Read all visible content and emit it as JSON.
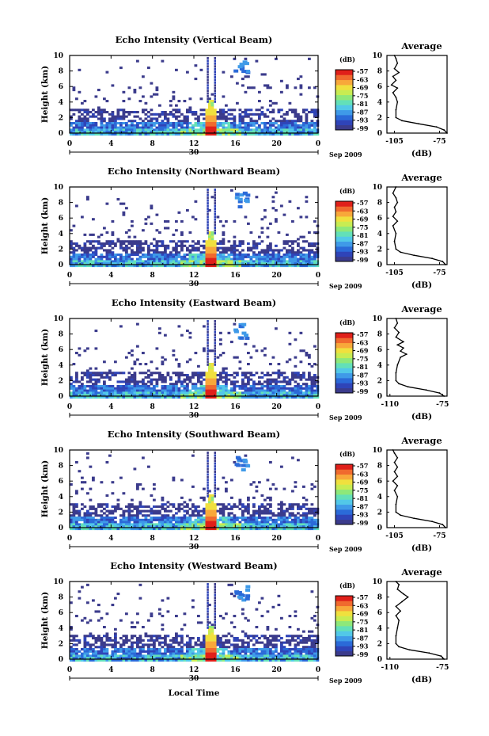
{
  "figure": {
    "x_axis_label": "Local Time",
    "y_axis_label": "Height (km)",
    "date_day": "30",
    "date_month": "Sep 2009",
    "colorbar_unit": "(dB)",
    "colorbar_ticks": [
      "-57",
      "-63",
      "-69",
      "-75",
      "-81",
      "-87",
      "-93",
      "-99"
    ],
    "colorscale": [
      "#3b3b8c",
      "#2f44b8",
      "#2b6ad8",
      "#3f9ae8",
      "#52c8e8",
      "#63e0b8",
      "#8ee87a",
      "#c8ec52",
      "#f0e03e",
      "#f8a83a",
      "#f06a2e",
      "#e0201a"
    ],
    "outline_color": "#000000"
  },
  "chart_data": [
    {
      "type": "heatmap",
      "title": "Echo Intensity (Vertical Beam)",
      "xlabel": "Local Time",
      "ylabel": "Height (km)",
      "xlim": [
        0,
        24
      ],
      "ylim": [
        0,
        10
      ],
      "x_ticks": [
        "0",
        "4",
        "8",
        "12",
        "16",
        "20",
        "0"
      ],
      "y_ticks": [
        "0",
        "2",
        "4",
        "6",
        "8",
        "10"
      ],
      "colorbar": {
        "label": "(dB)",
        "ticks": [
          "-57",
          "-63",
          "-69",
          "-75",
          "-81",
          "-87",
          "-93",
          "-99"
        ]
      },
      "profile": {
        "title": "Average",
        "xlabel": "(dB)",
        "x_ticks": [
          "-105",
          "-75"
        ],
        "xlim": [
          -110,
          -70
        ],
        "y_ticks": [
          "0",
          "2",
          "4",
          "6",
          "8",
          "10"
        ],
        "points": [
          [
            -70,
            0
          ],
          [
            -72,
            0.4
          ],
          [
            -77,
            0.8
          ],
          [
            -89,
            1.2
          ],
          [
            -100,
            1.6
          ],
          [
            -104,
            2.0
          ],
          [
            -104,
            3.0
          ],
          [
            -103,
            4.0
          ],
          [
            -104,
            4.6
          ],
          [
            -106,
            5.2
          ],
          [
            -103,
            5.8
          ],
          [
            -107,
            6.2
          ],
          [
            -104,
            6.8
          ],
          [
            -106,
            7.3
          ],
          [
            -102,
            7.8
          ],
          [
            -105,
            8.3
          ],
          [
            -103,
            9.0
          ],
          [
            -104,
            9.6
          ],
          [
            -105,
            10
          ]
        ]
      }
    },
    {
      "type": "heatmap",
      "title": "Echo Intensity (Northward Beam)",
      "xlabel": "Local Time",
      "ylabel": "Height (km)",
      "xlim": [
        0,
        24
      ],
      "ylim": [
        0,
        10
      ],
      "x_ticks": [
        "0",
        "4",
        "8",
        "12",
        "16",
        "20",
        "0"
      ],
      "y_ticks": [
        "0",
        "2",
        "4",
        "6",
        "8",
        "10"
      ],
      "colorbar": {
        "label": "(dB)",
        "ticks": [
          "-57",
          "-63",
          "-69",
          "-75",
          "-81",
          "-87",
          "-93",
          "-99"
        ]
      },
      "profile": {
        "title": "Average",
        "xlabel": "(dB)",
        "x_ticks": [
          "-105",
          "-75"
        ],
        "xlim": [
          -110,
          -70
        ],
        "y_ticks": [
          "0",
          "2",
          "4",
          "6",
          "8",
          "10"
        ],
        "points": [
          [
            -71,
            0
          ],
          [
            -73,
            0.4
          ],
          [
            -80,
            0.8
          ],
          [
            -92,
            1.2
          ],
          [
            -101,
            1.6
          ],
          [
            -104,
            2.0
          ],
          [
            -105,
            3.0
          ],
          [
            -104,
            4.0
          ],
          [
            -106,
            5.0
          ],
          [
            -103,
            5.6
          ],
          [
            -106,
            6.2
          ],
          [
            -104,
            6.8
          ],
          [
            -105,
            7.4
          ],
          [
            -103,
            8.0
          ],
          [
            -104,
            8.6
          ],
          [
            -106,
            9.2
          ],
          [
            -104,
            10
          ]
        ]
      }
    },
    {
      "type": "heatmap",
      "title": "Echo Intensity (Eastward Beam)",
      "xlabel": "Local Time",
      "ylabel": "Height (km)",
      "xlim": [
        0,
        24
      ],
      "ylim": [
        0,
        10
      ],
      "x_ticks": [
        "0",
        "4",
        "8",
        "12",
        "16",
        "20",
        "0"
      ],
      "y_ticks": [
        "0",
        "2",
        "4",
        "6",
        "8",
        "10"
      ],
      "colorbar": {
        "label": "(dB)",
        "ticks": [
          "-57",
          "-63",
          "-69",
          "-75",
          "-81",
          "-87",
          "-93",
          "-99"
        ]
      },
      "profile": {
        "title": "Average",
        "xlabel": "(dB)",
        "x_ticks": [
          "-110",
          "-75"
        ],
        "xlim": [
          -112,
          -72
        ],
        "y_ticks": [
          "0",
          "2",
          "4",
          "6",
          "8",
          "10"
        ],
        "points": [
          [
            -74,
            0
          ],
          [
            -77,
            0.4
          ],
          [
            -86,
            0.8
          ],
          [
            -98,
            1.2
          ],
          [
            -104,
            1.6
          ],
          [
            -106,
            2.0
          ],
          [
            -106,
            3.0
          ],
          [
            -105,
            4.0
          ],
          [
            -103,
            5.0
          ],
          [
            -99,
            5.4
          ],
          [
            -103,
            5.8
          ],
          [
            -101,
            6.2
          ],
          [
            -105,
            6.6
          ],
          [
            -101,
            7.0
          ],
          [
            -106,
            7.6
          ],
          [
            -104,
            8.2
          ],
          [
            -107,
            8.8
          ],
          [
            -105,
            9.4
          ],
          [
            -106,
            10
          ]
        ]
      }
    },
    {
      "type": "heatmap",
      "title": "Echo Intensity (Southward Beam)",
      "xlabel": "Local Time",
      "ylabel": "Height (km)",
      "xlim": [
        0,
        24
      ],
      "ylim": [
        0,
        10
      ],
      "x_ticks": [
        "0",
        "4",
        "8",
        "12",
        "16",
        "20",
        "0"
      ],
      "y_ticks": [
        "0",
        "2",
        "4",
        "6",
        "8",
        "10"
      ],
      "colorbar": {
        "label": "(dB)",
        "ticks": [
          "-57",
          "-63",
          "-69",
          "-75",
          "-81",
          "-87",
          "-93",
          "-99"
        ]
      },
      "profile": {
        "title": "Average",
        "xlabel": "(dB)",
        "x_ticks": [
          "-105",
          "-75"
        ],
        "xlim": [
          -110,
          -70
        ],
        "y_ticks": [
          "0",
          "2",
          "4",
          "6",
          "8",
          "10"
        ],
        "points": [
          [
            -71,
            0
          ],
          [
            -73,
            0.4
          ],
          [
            -80,
            0.8
          ],
          [
            -92,
            1.2
          ],
          [
            -101,
            1.6
          ],
          [
            -104,
            2.0
          ],
          [
            -104,
            3.0
          ],
          [
            -103,
            4.0
          ],
          [
            -105,
            4.8
          ],
          [
            -103,
            5.4
          ],
          [
            -106,
            6.0
          ],
          [
            -103,
            6.6
          ],
          [
            -105,
            7.2
          ],
          [
            -103,
            7.8
          ],
          [
            -105,
            8.4
          ],
          [
            -103,
            9.0
          ],
          [
            -105,
            9.6
          ],
          [
            -106,
            10
          ]
        ]
      }
    },
    {
      "type": "heatmap",
      "title": "Echo Intensity (Westward Beam)",
      "xlabel": "Local Time",
      "ylabel": "Height (km)",
      "xlim": [
        0,
        24
      ],
      "ylim": [
        0,
        10
      ],
      "x_ticks": [
        "0",
        "4",
        "8",
        "12",
        "16",
        "20",
        "0"
      ],
      "y_ticks": [
        "0",
        "2",
        "4",
        "6",
        "8",
        "10"
      ],
      "colorbar": {
        "label": "(dB)",
        "ticks": [
          "-57",
          "-63",
          "-69",
          "-75",
          "-81",
          "-87",
          "-93",
          "-99"
        ]
      },
      "profile": {
        "title": "Average",
        "xlabel": "(dB)",
        "x_ticks": [
          "-110",
          "-75"
        ],
        "xlim": [
          -112,
          -72
        ],
        "y_ticks": [
          "0",
          "2",
          "4",
          "6",
          "8",
          "10"
        ],
        "points": [
          [
            -74,
            0
          ],
          [
            -76,
            0.4
          ],
          [
            -84,
            0.8
          ],
          [
            -97,
            1.2
          ],
          [
            -104,
            1.6
          ],
          [
            -106,
            2.0
          ],
          [
            -106,
            3.0
          ],
          [
            -105,
            4.0
          ],
          [
            -104,
            5.0
          ],
          [
            -106,
            5.6
          ],
          [
            -103,
            6.2
          ],
          [
            -106,
            6.8
          ],
          [
            -102,
            7.4
          ],
          [
            -98,
            8.0
          ],
          [
            -101,
            8.4
          ],
          [
            -105,
            9.0
          ],
          [
            -104,
            9.6
          ],
          [
            -106,
            10
          ]
        ]
      }
    }
  ]
}
